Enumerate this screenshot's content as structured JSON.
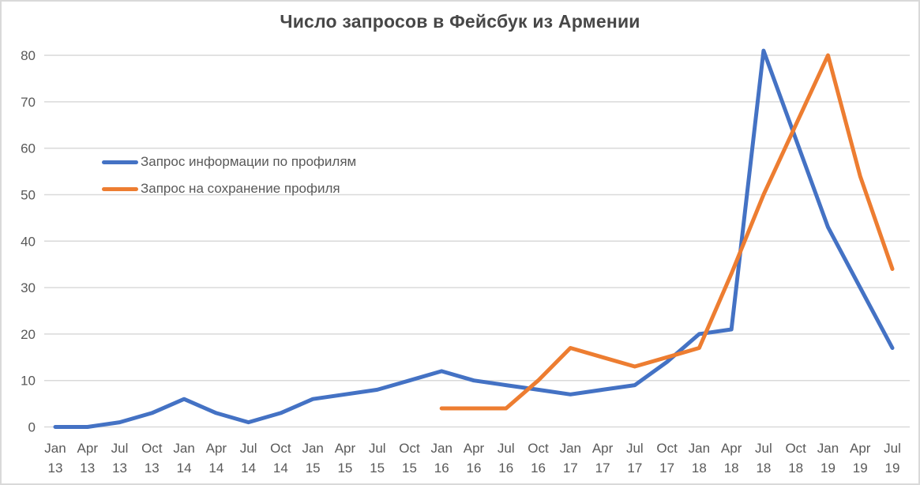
{
  "chart_data": {
    "type": "line",
    "title": "Число запросов в Фейсбук из Армении",
    "categories": [
      "Jan 13",
      "Apr 13",
      "Jul 13",
      "Oct 13",
      "Jan 14",
      "Apr 14",
      "Jul 14",
      "Oct 14",
      "Jan 15",
      "Apr 15",
      "Jul 15",
      "Oct 15",
      "Jan 16",
      "Apr 16",
      "Jul 16",
      "Oct 16",
      "Jan 17",
      "Apr 17",
      "Jul 17",
      "Oct 17",
      "Jan 18",
      "Apr 18",
      "Jul 18",
      "Oct 18",
      "Jan 19",
      "Apr 19",
      "Jul 19"
    ],
    "series": [
      {
        "name": "Запрос информации по профилям",
        "color": "#4472C4",
        "values": [
          0,
          0,
          1,
          3,
          6,
          3,
          1,
          3,
          6,
          7,
          8,
          10,
          12,
          10,
          9,
          8,
          7,
          8,
          9,
          14,
          20,
          21,
          81,
          62,
          43,
          30,
          17
        ]
      },
      {
        "name": "Запрос на сохранение профиля",
        "color": "#ED7D31",
        "values": [
          null,
          null,
          null,
          null,
          null,
          null,
          null,
          null,
          null,
          null,
          null,
          null,
          4,
          4,
          4,
          10,
          17,
          15,
          13,
          15,
          17,
          33,
          50,
          65,
          80,
          54,
          34
        ]
      }
    ],
    "y_axis": {
      "min": 0,
      "max": 80,
      "step": 10,
      "ticks": [
        0,
        10,
        20,
        30,
        40,
        50,
        60,
        70,
        80
      ]
    },
    "x_axis": {
      "label_rows": 2
    },
    "grid": "horizontal",
    "legend_position": "inside-top-left",
    "colors": {
      "grid": "#D9D9D9",
      "border": "#D9D9D9",
      "axis_text": "#595959",
      "title_text": "#474747",
      "background": "#FFFFFF"
    }
  }
}
